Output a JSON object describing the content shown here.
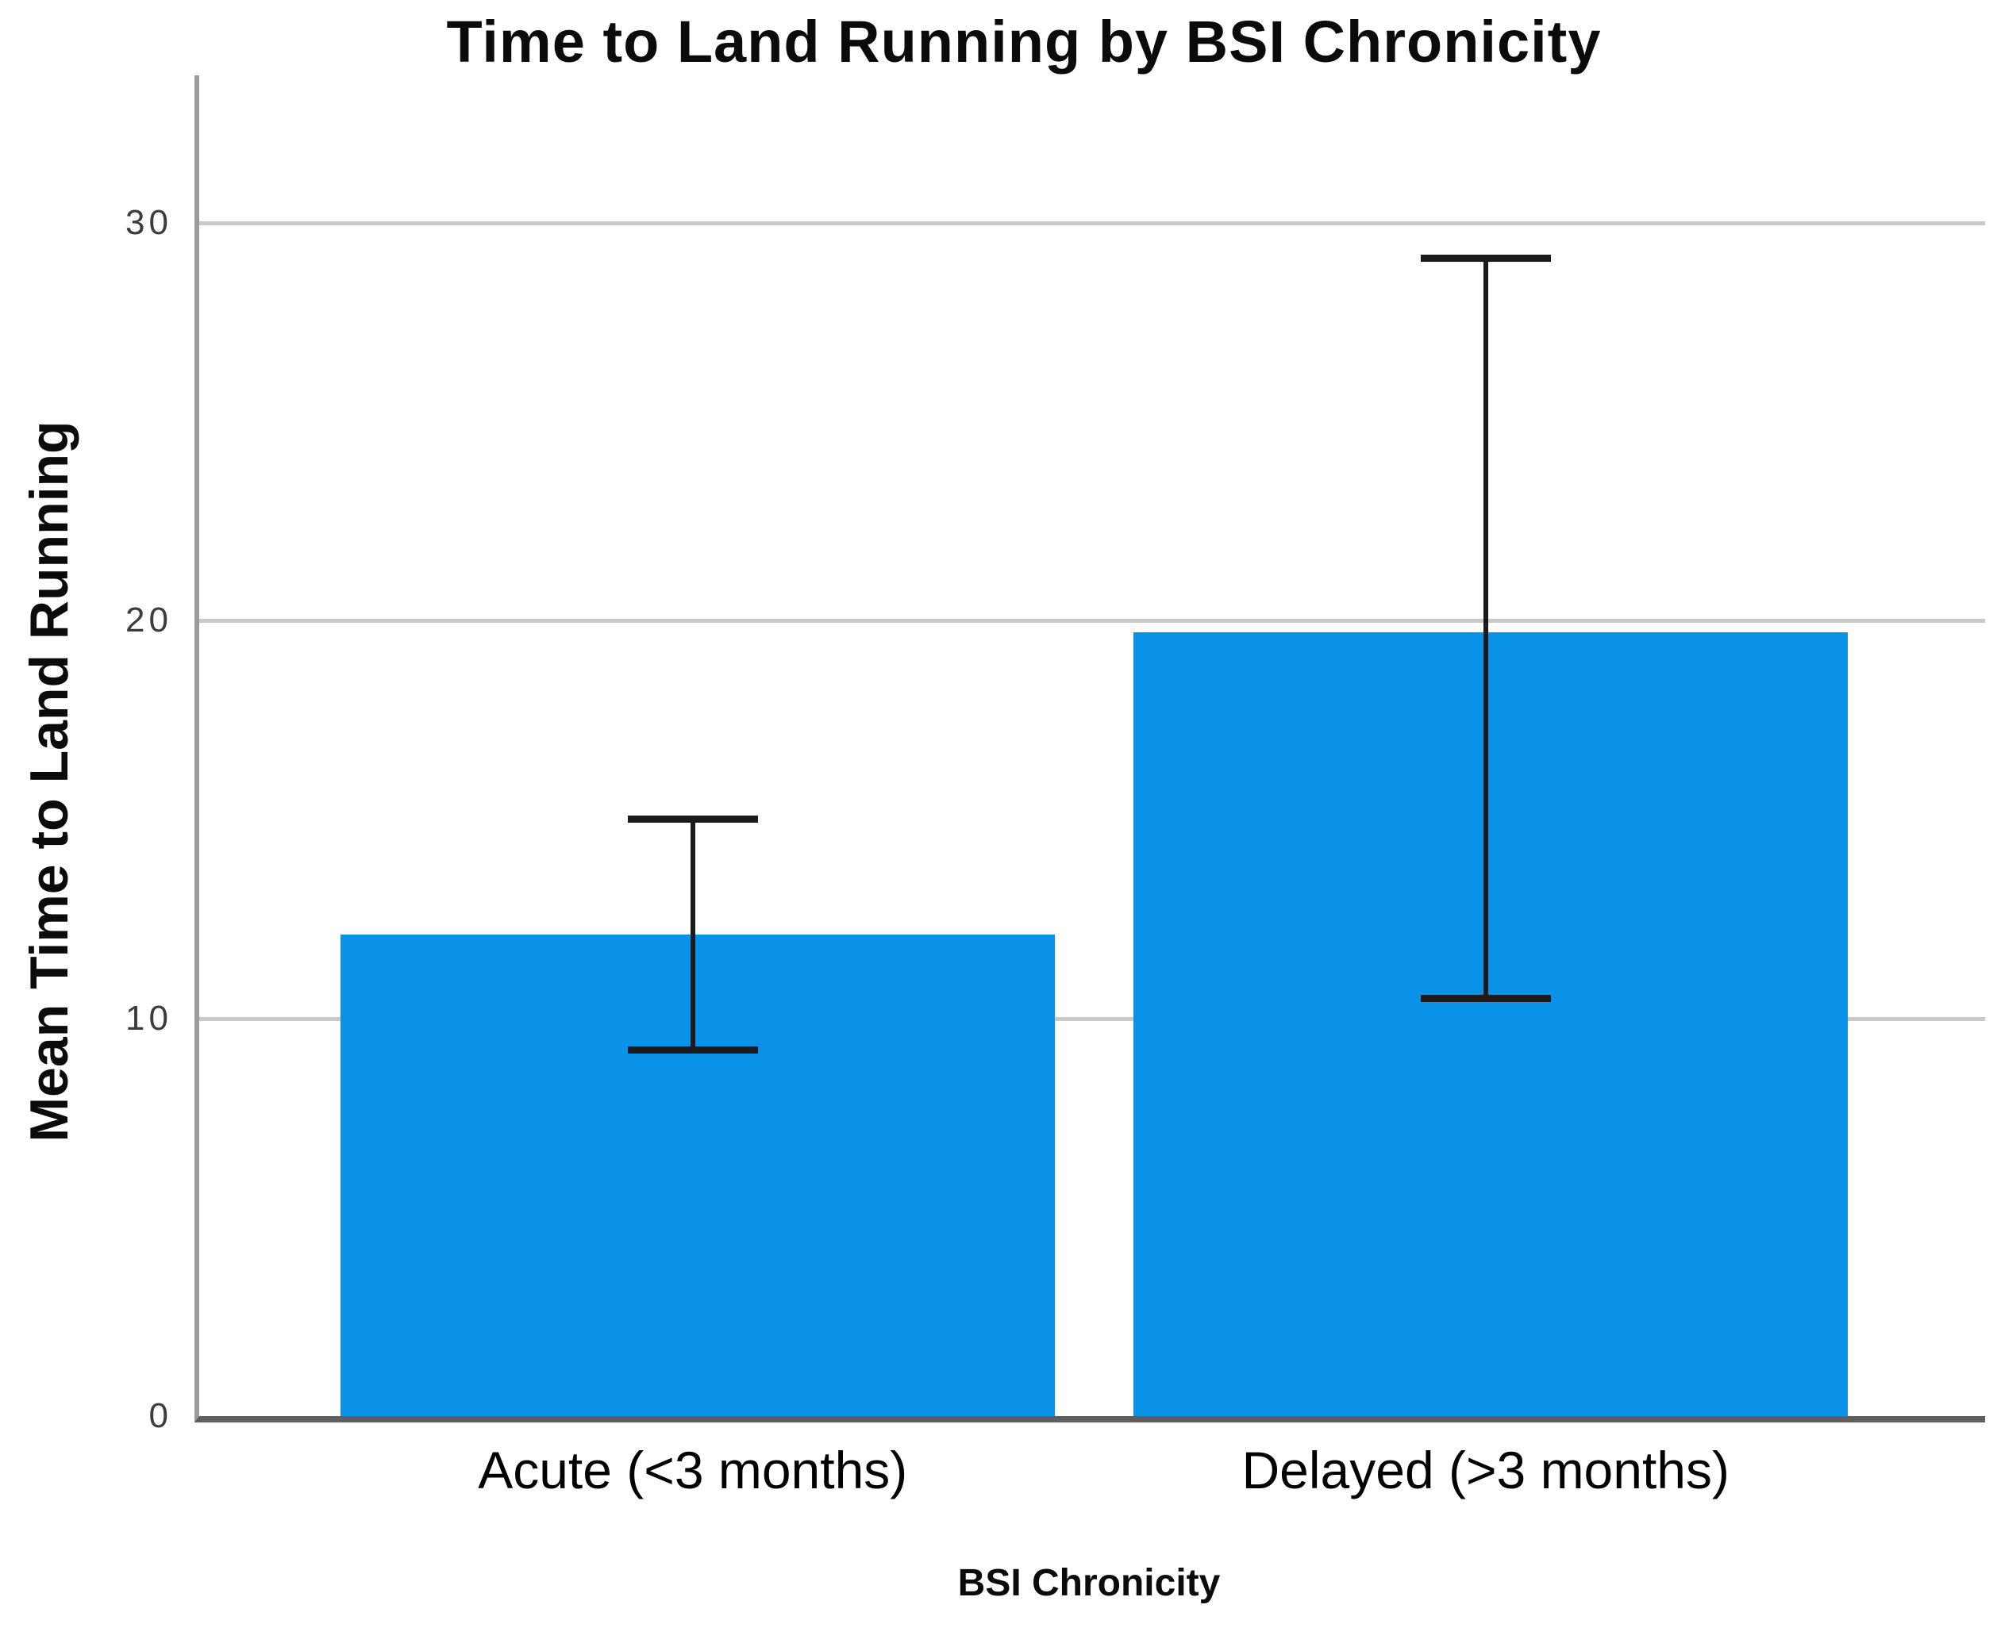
{
  "chart_data": {
    "type": "bar",
    "title": "Time to Land Running by BSI Chronicity",
    "xlabel": "BSI Chronicity",
    "ylabel": "Mean Time to Land Running",
    "categories": [
      "Acute (<3 months)",
      "Delayed (>3 months)"
    ],
    "values": [
      12.1,
      19.7
    ],
    "error_low": [
      9.2,
      10.5
    ],
    "error_high": [
      15.0,
      29.1
    ],
    "yticks": [
      0,
      10,
      20,
      30
    ],
    "ytick_labels": [
      "0",
      "10",
      "20",
      "30"
    ],
    "ylim": [
      0,
      33.7
    ],
    "grid": "horizontal",
    "legend": "none",
    "bar_color": "#0992e8",
    "error_bar_color": "#1b1b1d",
    "gridline_color": "#c9c9c9",
    "axis_line_color": "#9a9a9a",
    "background_color": "#ffffff"
  }
}
